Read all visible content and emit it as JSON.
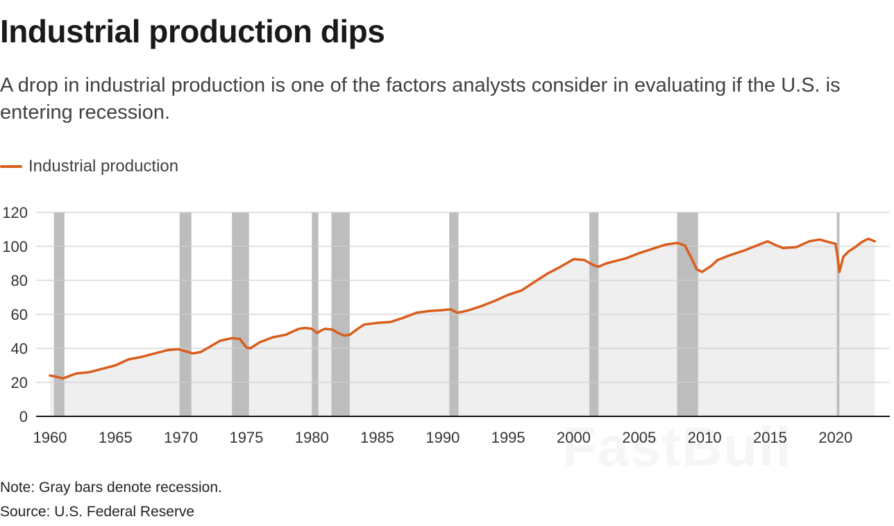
{
  "title": "Industrial production dips",
  "subtitle": "A drop in industrial production is one of the factors analysts consider in evaluating if the U.S. is entering recession.",
  "legend": {
    "label": "Industrial production",
    "color": "#d95d1c"
  },
  "notes": {
    "note": "Note: Gray bars denote recession.",
    "source": "Source: U.S. Federal Reserve"
  },
  "watermark": "FastBull",
  "chart_data": {
    "type": "line",
    "title": "Industrial production dips",
    "xlabel": "",
    "ylabel": "",
    "xlim": [
      1960,
      2023.3
    ],
    "ylim": [
      0,
      120
    ],
    "yticks": [
      0,
      20,
      40,
      60,
      80,
      100,
      120
    ],
    "xticks": [
      1960,
      1965,
      1970,
      1975,
      1980,
      1985,
      1990,
      1995,
      2000,
      2005,
      2010,
      2015,
      2020
    ],
    "grid": true,
    "line_color": "#d95d1c",
    "area_color": "#efefef",
    "recession_color": "#bdbdbd",
    "recessions": [
      [
        1960.3,
        1961.1
      ],
      [
        1969.9,
        1970.8
      ],
      [
        1973.9,
        1975.2
      ],
      [
        1980.0,
        1980.5
      ],
      [
        1981.5,
        1982.9
      ],
      [
        1990.5,
        1991.2
      ],
      [
        2001.2,
        2001.9
      ],
      [
        2007.9,
        2009.5
      ],
      [
        2020.1,
        2020.3
      ]
    ],
    "series": [
      {
        "name": "Industrial production",
        "x": [
          1960.0,
          1960.5,
          1961.0,
          1961.5,
          1962,
          1963,
          1964,
          1965,
          1966,
          1967,
          1968,
          1969,
          1969.8,
          1970.5,
          1970.9,
          1971.5,
          1972,
          1973,
          1973.9,
          1974.5,
          1975.0,
          1975.3,
          1976,
          1977,
          1978,
          1979,
          1979.5,
          1980.0,
          1980.4,
          1980.7,
          1981.0,
          1981.6,
          1982.0,
          1982.5,
          1982.9,
          1983.5,
          1984,
          1985,
          1986,
          1987,
          1988,
          1989,
          1990,
          1990.6,
          1991.1,
          1991.5,
          1992,
          1993,
          1994,
          1995,
          1996,
          1997,
          1998,
          1999,
          2000.0,
          2000.8,
          2001.5,
          2001.9,
          2002.5,
          2003,
          2004,
          2005,
          2006,
          2007,
          2007.9,
          2008.5,
          2009.0,
          2009.4,
          2009.8,
          2010.5,
          2011,
          2012,
          2013,
          2014,
          2014.8,
          2015.5,
          2016,
          2017,
          2018,
          2018.8,
          2019.5,
          2020.0,
          2020.15,
          2020.3,
          2020.6,
          2021,
          2021.5,
          2022,
          2022.5,
          2023.0
        ],
        "values": [
          24.0,
          23.3,
          22.3,
          23.8,
          25.2,
          26.0,
          28.0,
          30.0,
          33.5,
          35.0,
          37.0,
          39.0,
          39.5,
          38.0,
          37.0,
          37.8,
          40.0,
          44.5,
          46.0,
          45.5,
          40.5,
          40.0,
          43.5,
          46.5,
          48.0,
          51.5,
          52.0,
          51.5,
          49.0,
          50.5,
          51.5,
          51.0,
          49.0,
          47.5,
          48.0,
          51.5,
          54.0,
          55.0,
          55.5,
          58.0,
          61.0,
          62.0,
          62.5,
          63.0,
          61.0,
          61.5,
          62.5,
          65.0,
          68.0,
          71.5,
          74.0,
          79.0,
          84.0,
          88.0,
          92.5,
          92.0,
          89.0,
          88.0,
          90.0,
          91.0,
          93.0,
          96.0,
          98.5,
          101.0,
          102.0,
          100.5,
          93.0,
          86.5,
          85.0,
          88.5,
          92.0,
          95.0,
          97.5,
          100.5,
          103.0,
          100.5,
          99.0,
          99.5,
          103.0,
          104.0,
          102.5,
          101.5,
          94.0,
          85.0,
          94.0,
          97.0,
          99.5,
          102.5,
          104.5,
          103.0
        ]
      }
    ]
  }
}
